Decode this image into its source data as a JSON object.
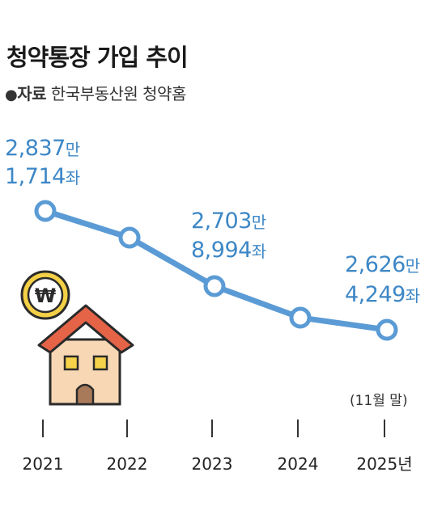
{
  "title": "청약통장 가입 추이",
  "source": {
    "bullet": "●",
    "key": "자료",
    "value": "한국부동산원 청약홈"
  },
  "chart_data": {
    "type": "line",
    "categories": [
      "2021",
      "2022",
      "2023",
      "2024",
      "2025년"
    ],
    "values": [
      28371714,
      null,
      27038994,
      null,
      26264249
    ],
    "note": "(11월 말)",
    "annotations": [
      {
        "category": "2021",
        "line1": "2,837",
        "unit1": "만",
        "line2": "1,714",
        "unit2": "좌"
      },
      {
        "category": "2023",
        "line1": "2,703",
        "unit1": "만",
        "line2": "8,994",
        "unit2": "좌"
      },
      {
        "category": "2025년",
        "line1": "2,626",
        "unit1": "만",
        "line2": "4,249",
        "unit2": "좌"
      }
    ],
    "series_color": "#5b9bd5",
    "xlabel": "",
    "ylabel": ""
  },
  "illustration": {
    "coin_symbol": "₩",
    "house": "house-icon"
  }
}
